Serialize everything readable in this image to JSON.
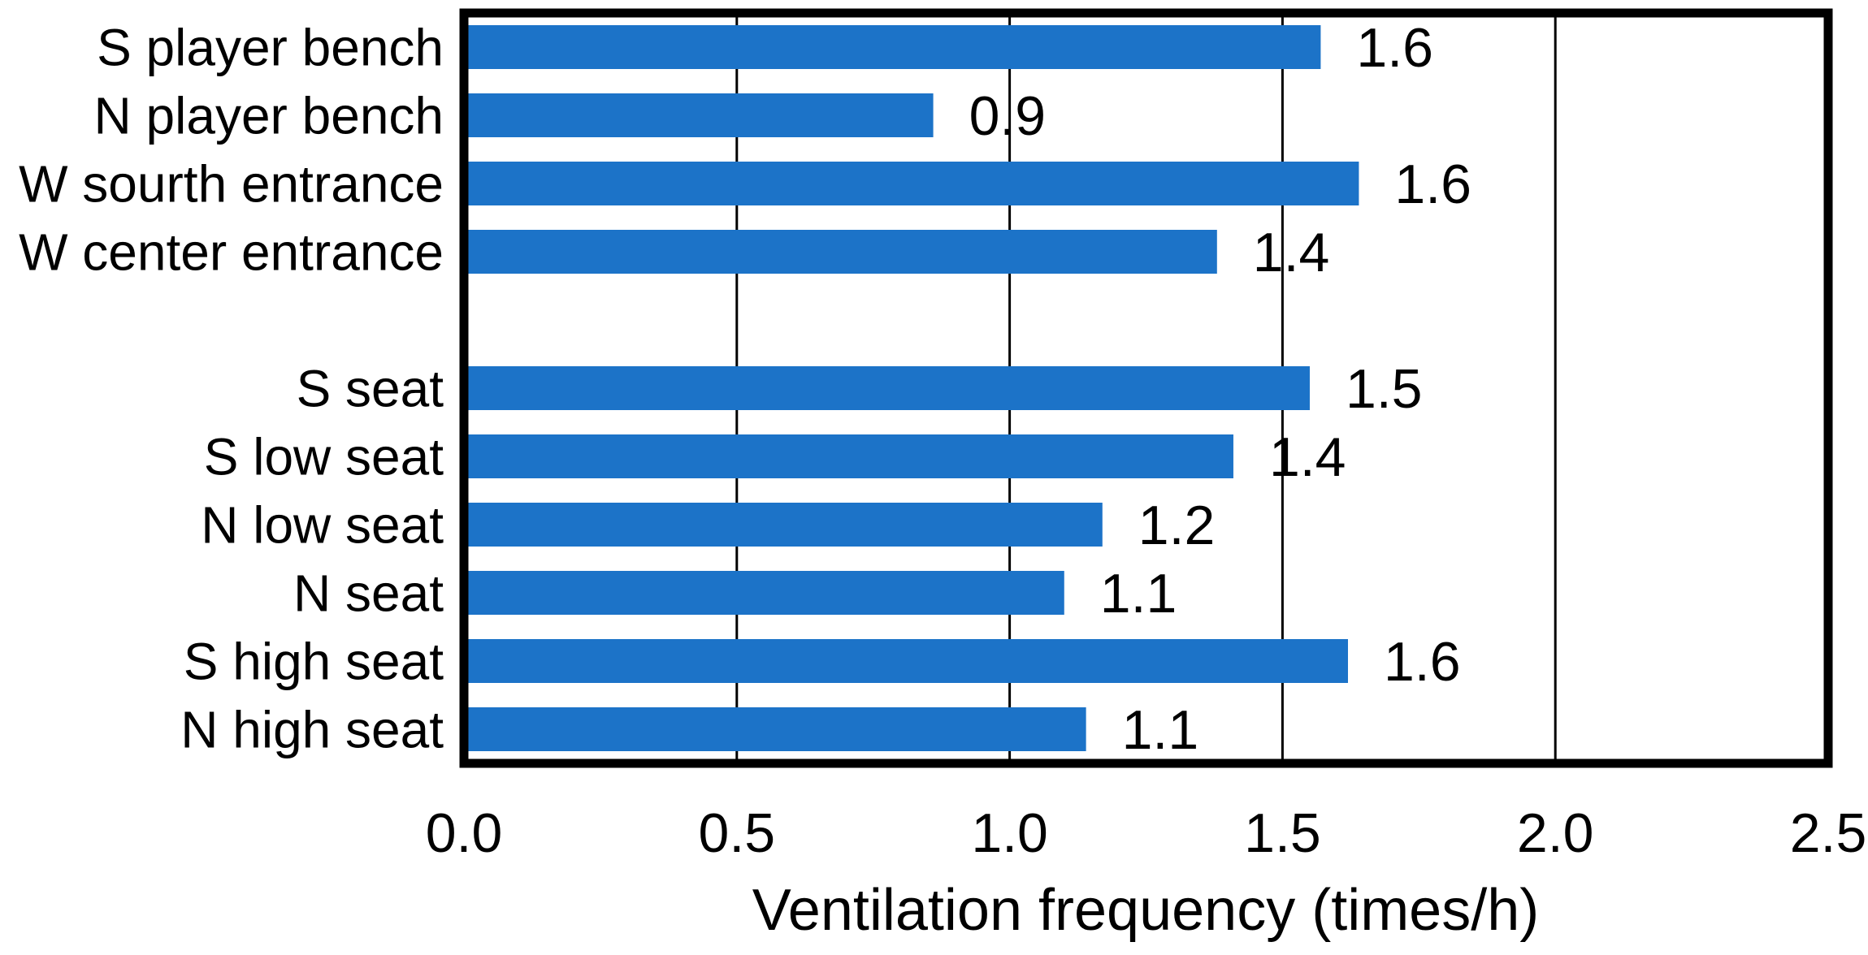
{
  "chart_data": {
    "type": "bar",
    "orientation": "horizontal",
    "title": "",
    "xlabel": "Ventilation frequency (times/h)",
    "ylabel": "",
    "xlim": [
      0,
      2.5
    ],
    "xticks": [
      0.0,
      0.5,
      1.0,
      1.5,
      2.0,
      2.5
    ],
    "xtick_labels": [
      "0.0",
      "0.5",
      "1.0",
      "1.5",
      "2.0",
      "2.5"
    ],
    "grid": true,
    "legend": "none",
    "categories": [
      "S player bench",
      "N player bench",
      "W sourth entrance",
      "W center entrance",
      "",
      "S seat",
      "S low seat",
      "N low seat",
      "N seat",
      "S high seat",
      "N high seat"
    ],
    "values": [
      1.57,
      0.86,
      1.64,
      1.38,
      null,
      1.55,
      1.41,
      1.17,
      1.1,
      1.62,
      1.14
    ],
    "data_labels": [
      "1.6",
      "0.9",
      "1.6",
      "1.4",
      "",
      "1.5",
      "1.4",
      "1.2",
      "1.1",
      "1.6",
      "1.1"
    ],
    "colors": {
      "bar": "#1C73C8",
      "axis": "#000000",
      "grid": "#000000",
      "text": "#000000",
      "background": "#FFFFFF"
    }
  }
}
